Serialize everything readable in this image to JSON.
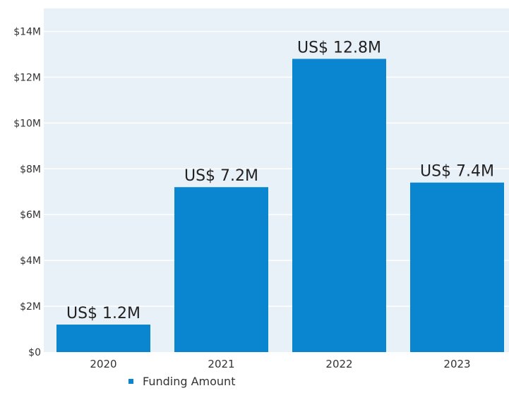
{
  "chart_data": {
    "type": "bar",
    "categories": [
      "2020",
      "2021",
      "2022",
      "2023"
    ],
    "values": [
      1.2,
      7.2,
      12.8,
      7.4
    ],
    "data_labels": [
      "US$ 1.2M",
      "US$ 7.2M",
      "US$ 12.8M",
      "US$ 7.4M"
    ],
    "series": [
      {
        "name": "Funding Amount",
        "values": [
          1.2,
          7.2,
          12.8,
          7.4
        ]
      }
    ],
    "ylim": [
      0,
      15
    ],
    "y_ticks": [
      0,
      2,
      4,
      6,
      8,
      10,
      12,
      14
    ],
    "y_tick_labels": [
      "$0",
      "$2M",
      "$4M",
      "$6M",
      "$8M",
      "$10M",
      "$12M",
      "$14M"
    ],
    "grid": true,
    "legend_position": "bottom-left",
    "colors": {
      "bar": "#0a86d0",
      "plot_background": "#e8f0f8",
      "grid": "#ffffff"
    }
  },
  "legend": {
    "label": "Funding Amount"
  }
}
